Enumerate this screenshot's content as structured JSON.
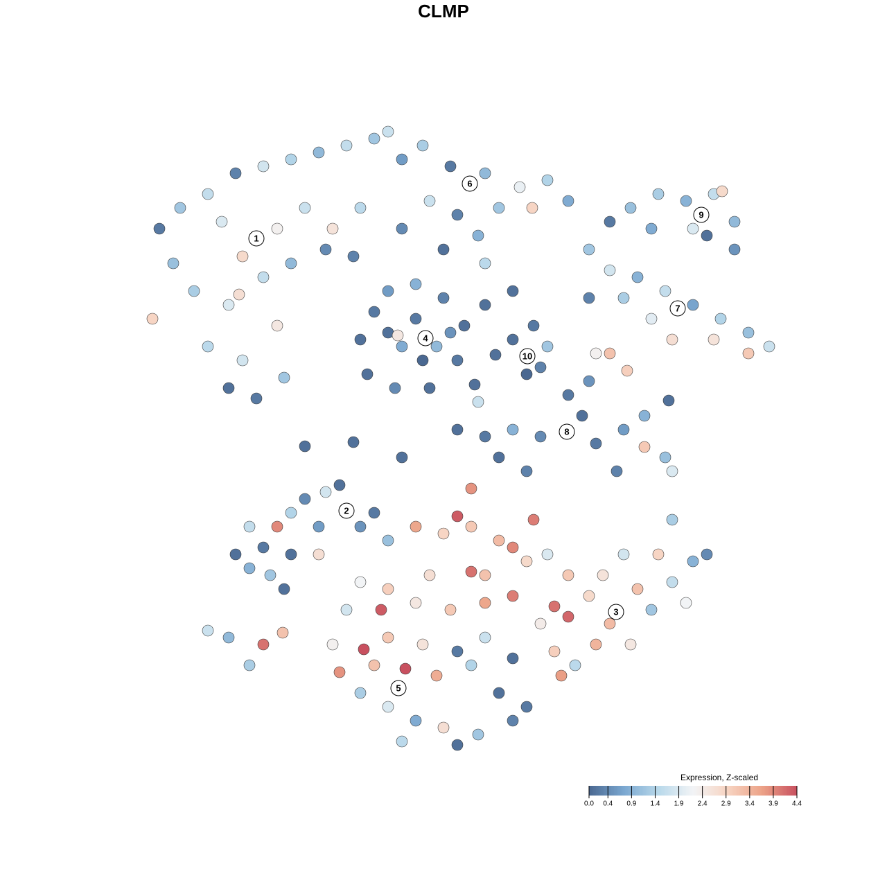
{
  "chart_data": {
    "type": "scatter",
    "title": "CLMP",
    "xlim": [
      0,
      930
    ],
    "ylim": [
      0,
      905
    ],
    "x": [
      30,
      60,
      100,
      140,
      180,
      220,
      260,
      300,
      340,
      120,
      150,
      200,
      240,
      280,
      320,
      20,
      80,
      130,
      180,
      220,
      270,
      100,
      150,
      200,
      130,
      170,
      210,
      50,
      310,
      145,
      320,
      340,
      360,
      400,
      440,
      470,
      460,
      420,
      370,
      330,
      380,
      400,
      430,
      360,
      450,
      374,
      410,
      500,
      540,
      380,
      410,
      450,
      500,
      550,
      590,
      620,
      420,
      460,
      520,
      568,
      490,
      500,
      440,
      380,
      360,
      680,
      710,
      750,
      790,
      830,
      860,
      860,
      800,
      740,
      842,
      820,
      650,
      680,
      720,
      760,
      800,
      840,
      880,
      910,
      880,
      830,
      770,
      740,
      700,
      650,
      660,
      705,
      680,
      540,
      570,
      590,
      560,
      580,
      515,
      460,
      500,
      540,
      580,
      640,
      660,
      700,
      730,
      760,
      730,
      765,
      690,
      770,
      620,
      650,
      520,
      560,
      380,
      240,
      310,
      490,
      485,
      140,
      160,
      180,
      200,
      220,
      240,
      270,
      290,
      260,
      220,
      190,
      160,
      210,
      260,
      100,
      130,
      180,
      160,
      208,
      320,
      340,
      590,
      620,
      650,
      680,
      710,
      660,
      600,
      580,
      630,
      610,
      740,
      770,
      800,
      820,
      750,
      700,
      720,
      670,
      620,
      600,
      770,
      790,
      360,
      400,
      440,
      480,
      520,
      540,
      460,
      480,
      570,
      560,
      500,
      480,
      420,
      360,
      320,
      300,
      350,
      400,
      450,
      500,
      540,
      280,
      325,
      360,
      410,
      460,
      500,
      290,
      340,
      385,
      430,
      480,
      320,
      360,
      400,
      440,
      490,
      540,
      380,
      460,
      520,
      560,
      540
    ],
    "y": [
      760,
      790,
      810,
      840,
      850,
      860,
      870,
      880,
      890,
      770,
      720,
      760,
      790,
      760,
      790,
      630,
      670,
      650,
      690,
      710,
      730,
      590,
      570,
      620,
      530,
      515,
      545,
      710,
      720,
      665,
      600,
      640,
      670,
      680,
      660,
      620,
      570,
      530,
      530,
      550,
      590,
      630,
      590,
      610,
      610,
      606,
      570,
      650,
      670,
      860,
      880,
      850,
      840,
      820,
      830,
      800,
      800,
      780,
      790,
      790,
      750,
      710,
      730,
      760,
      900,
      770,
      790,
      810,
      800,
      810,
      770,
      730,
      760,
      760,
      814,
      750,
      730,
      700,
      690,
      670,
      650,
      630,
      610,
      590,
      580,
      600,
      600,
      630,
      660,
      660,
      580,
      555,
      580,
      600,
      620,
      590,
      550,
      560,
      578,
      470,
      460,
      470,
      460,
      490,
      450,
      470,
      445,
      430,
      490,
      512,
      410,
      410,
      520,
      540,
      430,
      410,
      430,
      446,
      452,
      510,
      535,
      290,
      270,
      300,
      330,
      350,
      370,
      380,
      390,
      330,
      290,
      260,
      330,
      240,
      290,
      180,
      170,
      160,
      130,
      177,
      330,
      350,
      290,
      260,
      230,
      190,
      160,
      160,
      150,
      190,
      130,
      115,
      210,
      250,
      280,
      290,
      290,
      290,
      240,
      260,
      200,
      215,
      340,
      220,
      310,
      330,
      320,
      330,
      310,
      300,
      345,
      385,
      340,
      280,
      260,
      265,
      260,
      240,
      250,
      210,
      210,
      220,
      210,
      220,
      230,
      160,
      153,
      170,
      160,
      150,
      170,
      120,
      130,
      125,
      115,
      130,
      90,
      70,
      50,
      40,
      30,
      50,
      20,
      15,
      90,
      70,
      140
    ],
    "values": [
      0.2,
      1.2,
      1.6,
      0.3,
      1.8,
      1.4,
      1.0,
      1.6,
      1.2,
      1.9,
      2.8,
      2.3,
      1.7,
      2.6,
      1.5,
      2.9,
      1.3,
      1.9,
      1.6,
      1.0,
      0.4,
      1.5,
      1.8,
      2.5,
      0.1,
      0.2,
      1.2,
      1.1,
      0.3,
      2.7,
      0.1,
      0.2,
      0.6,
      0.9,
      0.3,
      0.1,
      0.2,
      0.1,
      0.4,
      0.1,
      0.8,
      0.2,
      1.0,
      0.1,
      0.5,
      2.5,
      0.0,
      0.1,
      0.1,
      0.6,
      1.3,
      0.2,
      1.0,
      2.1,
      1.4,
      0.8,
      1.7,
      0.3,
      1.2,
      2.9,
      0.9,
      1.5,
      0.1,
      0.4,
      1.7,
      0.2,
      1.1,
      1.3,
      0.9,
      1.6,
      1.0,
      0.5,
      1.9,
      0.8,
      2.8,
      0.1,
      1.2,
      1.8,
      0.9,
      1.6,
      0.7,
      1.4,
      1.1,
      1.7,
      3.1,
      2.6,
      2.7,
      2.0,
      1.3,
      0.3,
      2.3,
      3.0,
      3.2,
      0.1,
      0.2,
      1.2,
      0.0,
      0.3,
      0.1,
      0.1,
      0.2,
      0.9,
      0.4,
      0.1,
      0.2,
      0.6,
      3.1,
      1.1,
      0.9,
      0.1,
      0.3,
      1.9,
      0.2,
      0.5,
      0.1,
      0.3,
      0.1,
      0.1,
      0.1,
      1.7,
      0.1,
      0.1,
      0.9,
      0.2,
      3.9,
      1.4,
      0.4,
      1.8,
      0.1,
      0.6,
      0.1,
      1.2,
      1.6,
      0.1,
      2.7,
      1.7,
      1.0,
      4.1,
      1.3,
      3.2,
      0.5,
      0.2,
      1.9,
      3.1,
      2.8,
      3.3,
      2.5,
      3.4,
      3.0,
      2.4,
      1.5,
      3.7,
      1.2,
      1.6,
      0.9,
      0.4,
      2.9,
      1.8,
      3.2,
      2.6,
      4.2,
      4.1,
      1.3,
      2.2,
      1.1,
      3.6,
      2.9,
      3.1,
      3.3,
      3.9,
      4.3,
      3.8,
      4.0,
      2.8,
      3.2,
      4.1,
      2.7,
      3.0,
      2.2,
      1.8,
      4.3,
      2.5,
      3.1,
      3.6,
      4.0,
      2.3,
      4.4,
      3.1,
      2.6,
      0.2,
      1.7,
      3.8,
      3.2,
      4.4,
      3.5,
      1.4,
      1.3,
      1.9,
      0.8,
      2.7,
      1.2,
      0.3,
      1.5,
      0.1,
      0.1,
      0.2,
      0.1
    ],
    "clim": [
      0,
      4.4
    ],
    "colors": [
      "#4a6891",
      "#7aa7d0",
      "#b8d8ea",
      "#f2f4f6",
      "#f7d4c2",
      "#eca287",
      "#c8505f"
    ],
    "colorbar_title": "Expression, Z-scaled",
    "colorbar_ticks": [
      {
        "value": 0,
        "label": "0.0"
      },
      0.4,
      0.9,
      1.4,
      1.9,
      2.4,
      2.9,
      3.4,
      3.9,
      4.4
    ],
    "cluster_labels": [
      {
        "text": "1",
        "x": 170,
        "y": 746
      },
      {
        "text": "6",
        "x": 478,
        "y": 825
      },
      {
        "text": "9",
        "x": 812,
        "y": 780
      },
      {
        "text": "7",
        "x": 778,
        "y": 645
      },
      {
        "text": "4",
        "x": 414,
        "y": 602
      },
      {
        "text": "10",
        "x": 561,
        "y": 576
      },
      {
        "text": "8",
        "x": 618,
        "y": 467
      },
      {
        "text": "2",
        "x": 300,
        "y": 353
      },
      {
        "text": "3",
        "x": 689,
        "y": 207
      },
      {
        "text": "5",
        "x": 375,
        "y": 97
      }
    ]
  }
}
